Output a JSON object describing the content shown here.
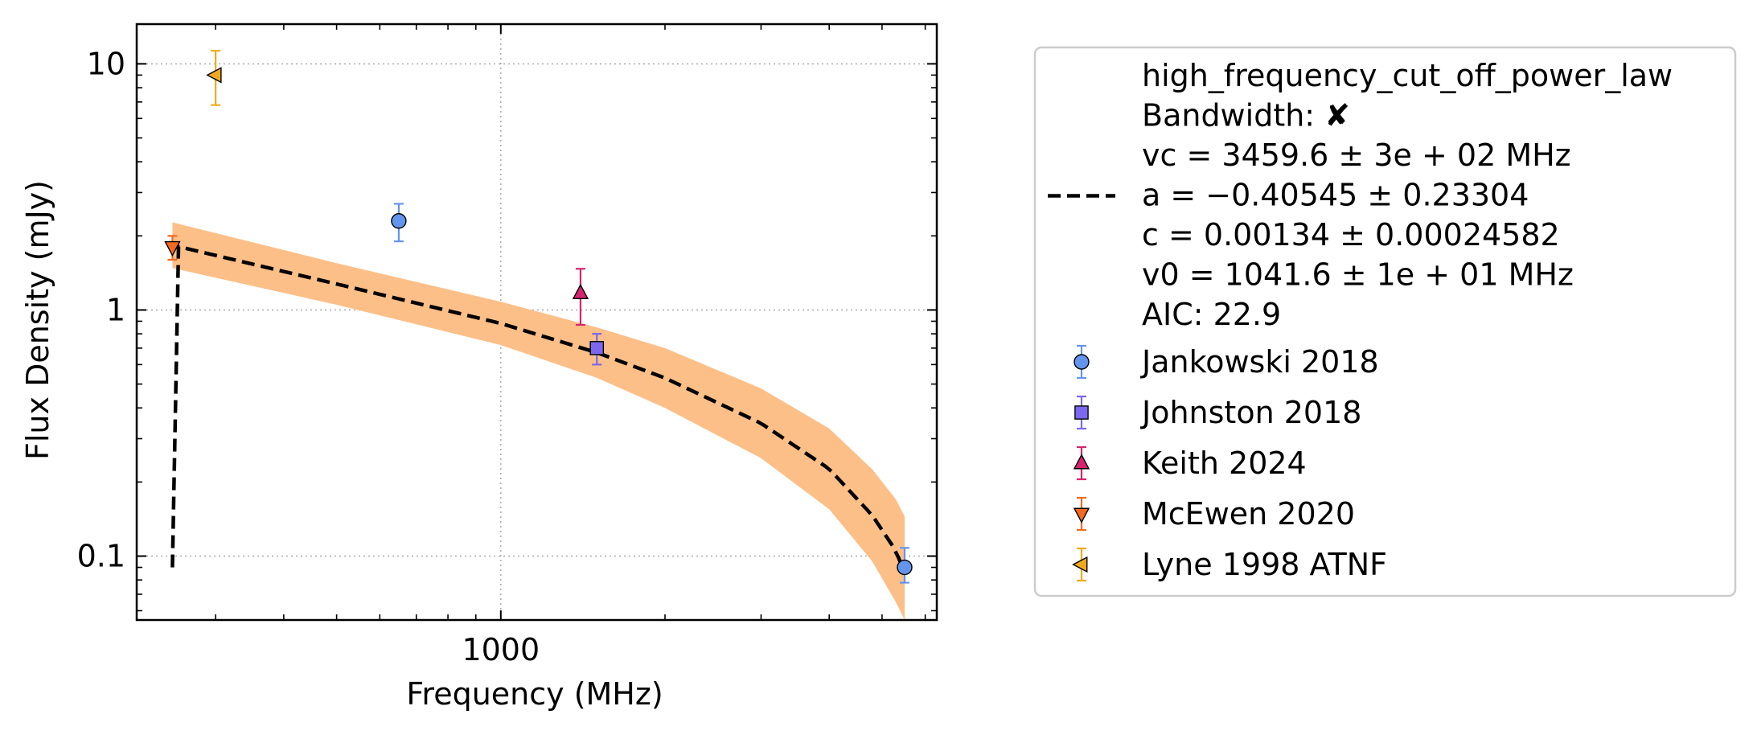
{
  "chart_data": {
    "type": "scatter",
    "xlabel": "Frequency (MHz)",
    "ylabel": "Flux Density (mJy)",
    "x_scale": "log",
    "y_scale": "log",
    "xlim": [
      215,
      6300
    ],
    "ylim": [
      0.055,
      14.5
    ],
    "x_major_ticks": [
      {
        "value": 1000,
        "label": "1000"
      }
    ],
    "y_major_ticks": [
      {
        "value": 0.1,
        "label": "0.1"
      },
      {
        "value": 1,
        "label": "1"
      },
      {
        "value": 10,
        "label": "10"
      }
    ],
    "grid": true,
    "legend_position": "outside-right",
    "series": [
      {
        "name": "Jankowski 2018",
        "marker": "circle",
        "color": "#6495ED",
        "points": [
          {
            "x": 650,
            "y": 2.3,
            "yerr_low": 1.9,
            "yerr_high": 2.7
          },
          {
            "x": 5500,
            "y": 0.09,
            "yerr_low": 0.078,
            "yerr_high": 0.108
          }
        ]
      },
      {
        "name": "Johnston 2018",
        "marker": "square",
        "color": "#7B68EE",
        "points": [
          {
            "x": 1500,
            "y": 0.7,
            "yerr_low": 0.6,
            "yerr_high": 0.8
          }
        ]
      },
      {
        "name": "Keith 2024",
        "marker": "triangle-up",
        "color": "#D6256E",
        "points": [
          {
            "x": 1400,
            "y": 1.17,
            "yerr_low": 0.87,
            "yerr_high": 1.47
          }
        ]
      },
      {
        "name": "McEwen 2020",
        "marker": "triangle-down",
        "color": "#F26A21",
        "points": [
          {
            "x": 250,
            "y": 1.8,
            "yerr_low": 1.6,
            "yerr_high": 2.0
          }
        ]
      },
      {
        "name": "Lyne 1998 ATNF",
        "marker": "triangle-left",
        "color": "#F0AA1E",
        "points": [
          {
            "x": 300,
            "y": 9.0,
            "yerr_low": 6.8,
            "yerr_high": 11.3
          }
        ]
      }
    ],
    "fit": {
      "model": "high_frequency_cut_off_power_law",
      "line_color": "#000000",
      "band_color": "#FDBF88",
      "vc": 3459.6,
      "a": -0.40545,
      "c": 0.00134,
      "v0": 1041.6,
      "x_range": [
        250,
        5500
      ],
      "band_points": [
        {
          "x": 250,
          "low": 1.48,
          "high": 2.27
        },
        {
          "x": 500,
          "low": 1.05,
          "high": 1.55
        },
        {
          "x": 1000,
          "low": 0.72,
          "high": 1.08
        },
        {
          "x": 1500,
          "low": 0.53,
          "high": 0.85
        },
        {
          "x": 2000,
          "low": 0.4,
          "high": 0.7
        },
        {
          "x": 3000,
          "low": 0.25,
          "high": 0.48
        },
        {
          "x": 4000,
          "low": 0.155,
          "high": 0.33
        },
        {
          "x": 4800,
          "low": 0.095,
          "high": 0.225
        },
        {
          "x": 5300,
          "low": 0.065,
          "high": 0.17
        },
        {
          "x": 5500,
          "low": 0.05,
          "high": 0.145
        }
      ]
    }
  },
  "legend": {
    "fit_lines": [
      "high_frequency_cut_off_power_law",
      "Bandwidth: ✘",
      "vc = 3459.6 ± 3e + 02 MHz",
      "a = −0.40545 ± 0.23304",
      "c = 0.00134 ± 0.00024582",
      "v0 = 1041.6 ± 1e + 01 MHz",
      "AIC: 22.9"
    ],
    "entries": [
      {
        "label": "Jankowski 2018",
        "marker": "circle",
        "color": "#6495ED"
      },
      {
        "label": "Johnston 2018",
        "marker": "square",
        "color": "#7B68EE"
      },
      {
        "label": "Keith 2024",
        "marker": "triangle-up",
        "color": "#D6256E"
      },
      {
        "label": "McEwen 2020",
        "marker": "triangle-down",
        "color": "#F26A21"
      },
      {
        "label": "Lyne 1998 ATNF",
        "marker": "triangle-left",
        "color": "#F0AA1E"
      }
    ]
  }
}
